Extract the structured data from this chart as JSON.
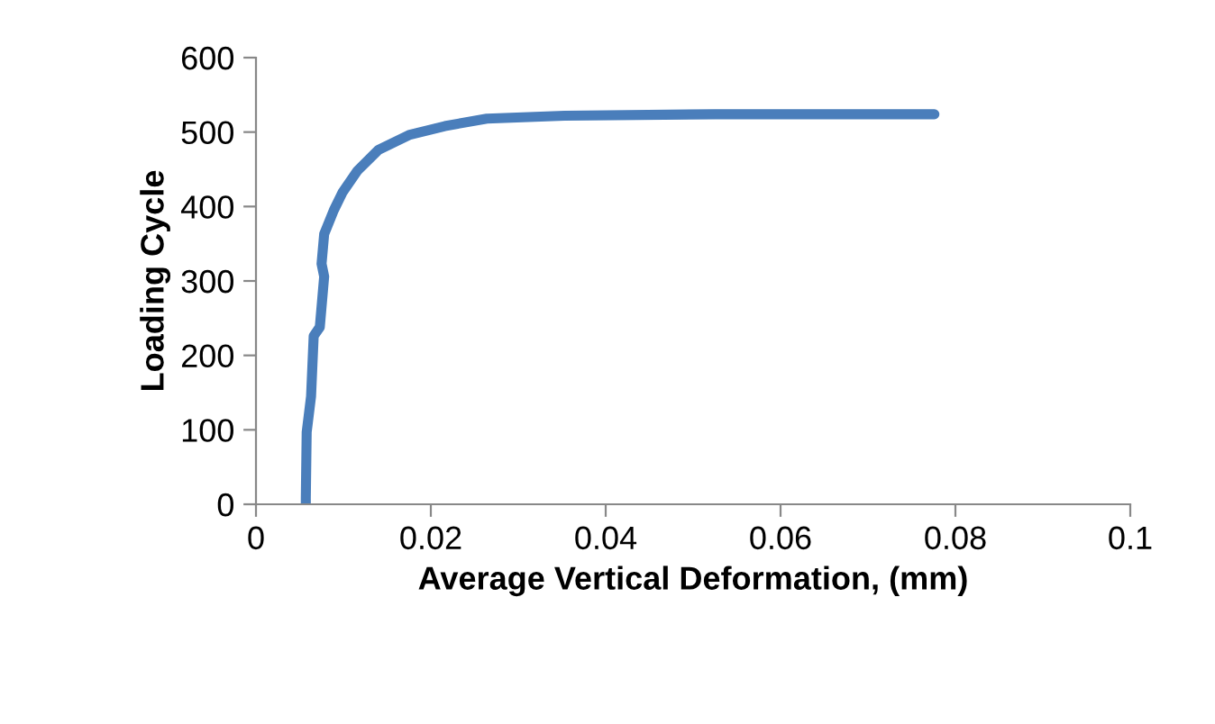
{
  "chart_data": {
    "type": "line",
    "xlabel": "Average Vertical Deformation, (mm)",
    "ylabel": "Loading Cycle",
    "series": [
      {
        "color": "#4a7ebb",
        "x": [
          0.0057,
          0.0057,
          0.0058,
          0.0063,
          0.0066,
          0.0073,
          0.0078,
          0.0075,
          0.0078,
          0.0089,
          0.0099,
          0.0116,
          0.014,
          0.0175,
          0.0216,
          0.0264,
          0.0353,
          0.0525,
          0.0776
        ],
        "values": [
          0,
          8,
          97,
          145,
          226,
          238,
          306,
          323,
          363,
          395,
          419,
          448,
          476,
          496,
          508,
          518,
          522,
          524,
          524
        ]
      }
    ],
    "xlim": [
      0,
      0.1
    ],
    "xticks": [
      {
        "value": 0,
        "label": "0"
      },
      0.02,
      0.04,
      0.06,
      0.08,
      0.1
    ],
    "ylim": [
      0,
      600
    ],
    "yticks": [
      0,
      100,
      200,
      300,
      400,
      500,
      600
    ],
    "grid": false
  }
}
